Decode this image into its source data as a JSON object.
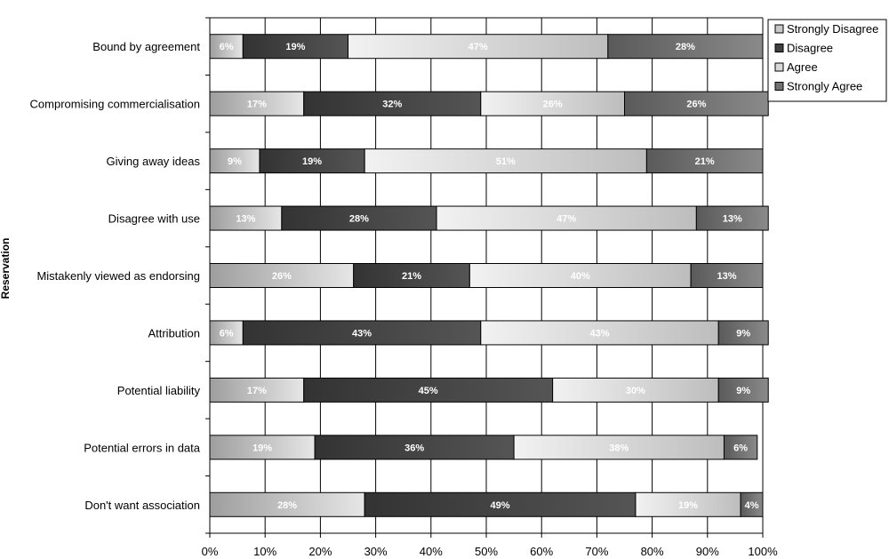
{
  "chart_data": {
    "type": "bar",
    "orientation": "horizontal",
    "stacked": true,
    "percent": true,
    "title": "",
    "xlabel": "",
    "ylabel": "Reservation",
    "xlim": [
      0,
      100
    ],
    "x_ticks": [
      "0%",
      "10%",
      "20%",
      "30%",
      "40%",
      "50%",
      "60%",
      "70%",
      "80%",
      "90%",
      "100%"
    ],
    "grid": true,
    "legend_position": "top-right",
    "categories": [
      "Bound by agreement",
      "Compromising commercialisation",
      "Giving away ideas",
      "Disagree with use",
      "Mistakenly viewed as endorsing",
      "Attribution",
      "Potential liability",
      "Potential errors in data",
      "Don't want association"
    ],
    "series": [
      {
        "name": "Strongly Disagree",
        "color": "#c8c8c8",
        "values": [
          6,
          17,
          9,
          13,
          26,
          6,
          17,
          19,
          28
        ]
      },
      {
        "name": "Disagree",
        "color": "#404040",
        "values": [
          19,
          32,
          19,
          28,
          21,
          43,
          45,
          36,
          49
        ]
      },
      {
        "name": "Agree",
        "color": "#d9d9d9",
        "values": [
          47,
          26,
          51,
          47,
          40,
          43,
          30,
          38,
          19
        ]
      },
      {
        "name": "Strongly Agree",
        "color": "#707070",
        "values": [
          28,
          26,
          21,
          13,
          13,
          9,
          9,
          6,
          4
        ]
      }
    ],
    "segment_labels": [
      [
        "6%",
        "19%",
        "47%",
        "28%"
      ],
      [
        "17%",
        "32%",
        "26%",
        "26%"
      ],
      [
        "9%",
        "19%",
        "51%",
        "21%"
      ],
      [
        "13%",
        "28%",
        "47%",
        "13%"
      ],
      [
        "26%",
        "21%",
        "40%",
        "13%"
      ],
      [
        "6%",
        "43%",
        "43%",
        "9%"
      ],
      [
        "17%",
        "45%",
        "30%",
        "9%"
      ],
      [
        "19%",
        "36%",
        "38%",
        "6%"
      ],
      [
        "28%",
        "49%",
        "19%",
        "4%"
      ]
    ]
  }
}
